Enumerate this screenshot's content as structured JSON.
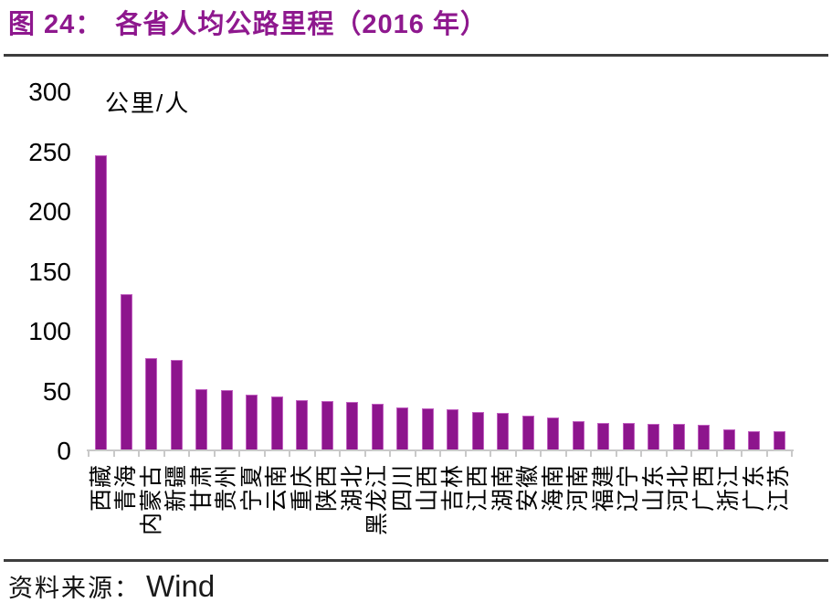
{
  "title": {
    "prefix": "图 24：",
    "text": "各省人均公路里程（2016 年）"
  },
  "source": {
    "label": "资料来源：",
    "value": "Wind"
  },
  "colors": {
    "title": "#8E188E",
    "bar_fill": "#8D158D",
    "bar_edge": "#C05FC0",
    "axis": "#C9C9C9",
    "rule": "#3D3D3D"
  },
  "chart_data": {
    "type": "bar",
    "title": "各省人均公路里程（2016 年）",
    "unit_label": "公里/人",
    "xlabel": "",
    "ylabel": "公里/人",
    "ylim": [
      0,
      300
    ],
    "yticks": [
      300,
      250,
      200,
      150,
      100,
      50,
      0
    ],
    "grid": false,
    "legend": "none",
    "categories": [
      "西藏",
      "青海",
      "内蒙古",
      "新疆",
      "甘肃",
      "贵州",
      "宁夏",
      "云南",
      "重庆",
      "陕西",
      "湖北",
      "黑龙江",
      "四川",
      "山西",
      "吉林",
      "江西",
      "湖南",
      "安徽",
      "海南",
      "河南",
      "福建",
      "辽宁",
      "山东",
      "河北",
      "广西",
      "浙江",
      "广东",
      "江苏"
    ],
    "values": [
      247,
      131,
      78,
      76,
      52,
      51,
      47,
      46,
      43,
      42,
      41,
      40,
      37,
      36,
      35,
      33,
      32,
      30,
      28,
      25,
      24,
      24,
      23,
      23,
      22,
      18,
      17,
      17
    ]
  }
}
